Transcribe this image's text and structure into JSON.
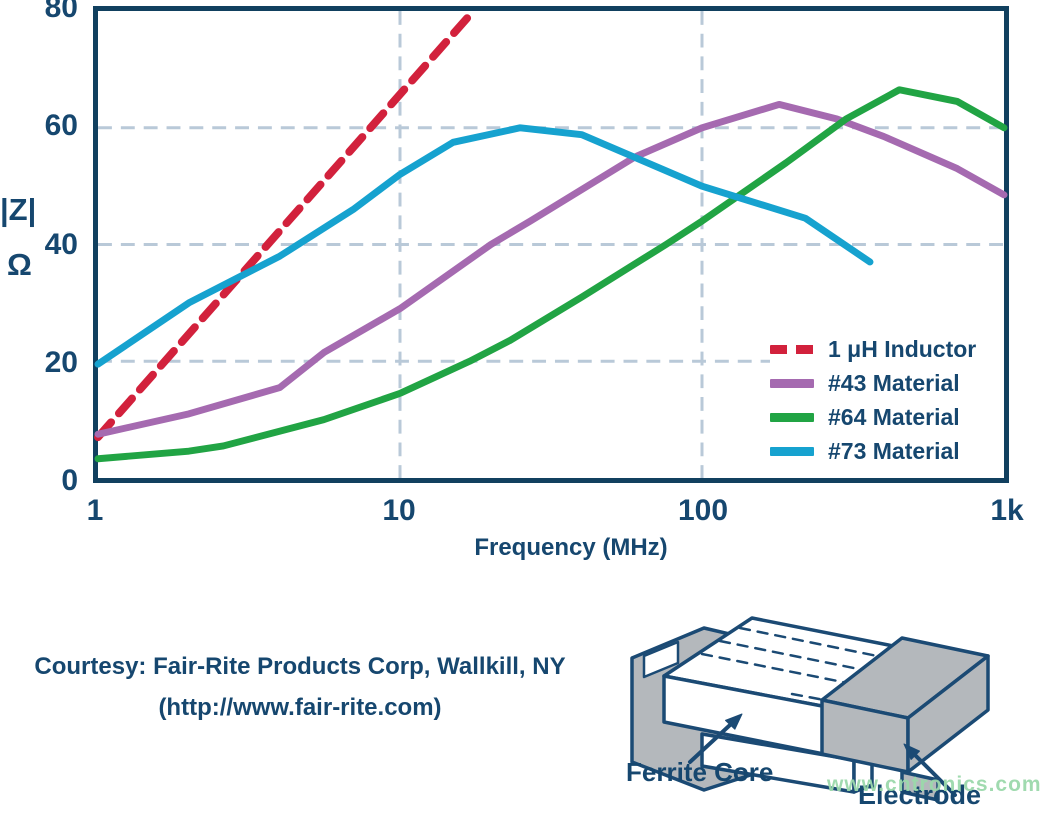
{
  "chart_data": {
    "type": "line",
    "title": "",
    "xlabel": "Frequency (MHz)",
    "ylabel_lines": [
      "|Z|",
      "Ω"
    ],
    "xscale": "log",
    "xlim": [
      1,
      1000
    ],
    "ylim": [
      0,
      80
    ],
    "xticks": [
      {
        "value": 1,
        "label": "1"
      },
      {
        "value": 10,
        "label": "10"
      },
      {
        "value": 100,
        "label": "100"
      },
      {
        "value": 1000,
        "label": "1k"
      }
    ],
    "yticks": [
      {
        "value": 0,
        "label": "0"
      },
      {
        "value": 20,
        "label": "20"
      },
      {
        "value": 40,
        "label": "40"
      },
      {
        "value": 60,
        "label": "60"
      },
      {
        "value": 80,
        "label": "80"
      }
    ],
    "grid": {
      "x_values": [
        10,
        100
      ],
      "y_values": [
        20,
        40,
        60
      ],
      "dashed": true
    },
    "legend_position": "inside-right",
    "series": [
      {
        "name": "1 μH Inductor",
        "color": "#d2213c",
        "dashed": true,
        "points": [
          [
            1,
            7
          ],
          [
            17.5,
            80
          ]
        ]
      },
      {
        "name": "#43 Material",
        "color": "#a56ab0",
        "dashed": false,
        "points": [
          [
            1,
            7.5
          ],
          [
            2,
            11
          ],
          [
            4,
            15.5
          ],
          [
            5.6,
            21.5
          ],
          [
            10,
            29
          ],
          [
            20,
            40
          ],
          [
            27,
            44
          ],
          [
            60,
            55
          ],
          [
            100,
            60
          ],
          [
            180,
            64
          ],
          [
            280,
            61.5
          ],
          [
            400,
            58.5
          ],
          [
            700,
            53
          ],
          [
            1000,
            48.5
          ]
        ]
      },
      {
        "name": "#64 Material",
        "color": "#21a444",
        "dashed": false,
        "points": [
          [
            1,
            3.3
          ],
          [
            2,
            4.6
          ],
          [
            2.6,
            5.5
          ],
          [
            5.6,
            10
          ],
          [
            10,
            14.5
          ],
          [
            17,
            20
          ],
          [
            23,
            23.5
          ],
          [
            40,
            31
          ],
          [
            76,
            40
          ],
          [
            100,
            44
          ],
          [
            190,
            54
          ],
          [
            300,
            61.5
          ],
          [
            450,
            66.5
          ],
          [
            700,
            64.5
          ],
          [
            1000,
            60
          ]
        ]
      },
      {
        "name": "#73 Material",
        "color": "#16a2cf",
        "dashed": false,
        "points": [
          [
            1,
            19.5
          ],
          [
            2,
            30
          ],
          [
            4,
            38
          ],
          [
            7,
            46
          ],
          [
            10,
            52
          ],
          [
            15,
            57.5
          ],
          [
            25,
            60
          ],
          [
            40,
            58.8
          ],
          [
            100,
            50
          ],
          [
            220,
            44.5
          ],
          [
            360,
            37
          ]
        ]
      }
    ]
  },
  "courtesy": {
    "line1": "Courtesy: Fair-Rite Products Corp, Wallkill, NY",
    "line2": "(http://www.fair-rite.com)"
  },
  "figure": {
    "label_core": "Ferrite Core",
    "label_electrode": "Electrode",
    "watermark": "www.cntronics.com"
  },
  "colors": {
    "text_navy": "#16476f",
    "frame_navy": "#11405f",
    "gridline": "#b9c9d8",
    "electrode_gray": "#b4b8bc",
    "watermark_green": "#9bd9ab"
  }
}
